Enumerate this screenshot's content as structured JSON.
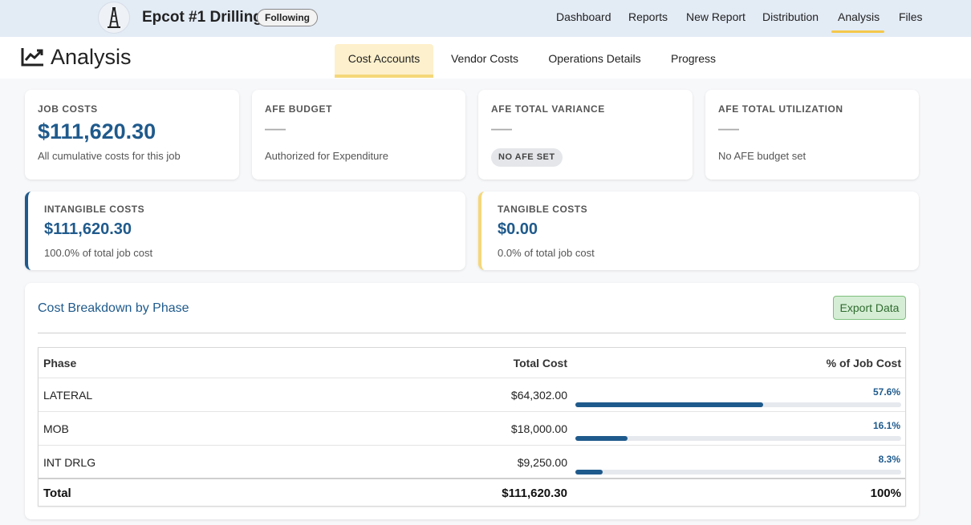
{
  "header": {
    "job_title": "Epcot #1 Drilling",
    "follow_label": "Following",
    "nav": [
      "Dashboard",
      "Reports",
      "New Report",
      "Distribution",
      "Analysis",
      "Files"
    ],
    "active_nav": "Analysis"
  },
  "subheader": {
    "title": "Analysis",
    "tabs": [
      "Cost Accounts",
      "Vendor Costs",
      "Operations Details",
      "Progress"
    ],
    "active_tab": "Cost Accounts"
  },
  "summary_cards": [
    {
      "label": "JOB COSTS",
      "value": "$111,620.30",
      "sub": "All cumulative costs for this job"
    },
    {
      "label": "AFE BUDGET",
      "value": "—",
      "sub": "Authorized for Expenditure"
    },
    {
      "label": "AFE TOTAL VARIANCE",
      "value": "—",
      "badge": "NO AFE SET"
    },
    {
      "label": "AFE TOTAL UTILIZATION",
      "value": "—",
      "sub": "No AFE budget set"
    }
  ],
  "cost_cards": [
    {
      "label": "INTANGIBLE COSTS",
      "value": "$111,620.30",
      "sub": "100.0% of total job cost",
      "accent": "#1f5a8c"
    },
    {
      "label": "TANGIBLE COSTS",
      "value": "$0.00",
      "sub": "0.0% of total job cost",
      "accent": "#f5d77a"
    }
  ],
  "breakdown": {
    "title": "Cost Breakdown by Phase",
    "export_label": "Export Data",
    "columns": [
      "Phase",
      "Total Cost",
      "% of Job Cost"
    ],
    "rows": [
      {
        "phase": "LATERAL",
        "cost": "$64,302.00",
        "pct_label": "57.6%",
        "pct": 57.6
      },
      {
        "phase": "MOB",
        "cost": "$18,000.00",
        "pct_label": "16.1%",
        "pct": 16.1
      },
      {
        "phase": "INT DRLG",
        "cost": "$9,250.00",
        "pct_label": "8.3%",
        "pct": 8.3
      }
    ],
    "total": {
      "label": "Total",
      "cost": "$111,620.30",
      "pct_label": "100%"
    }
  }
}
